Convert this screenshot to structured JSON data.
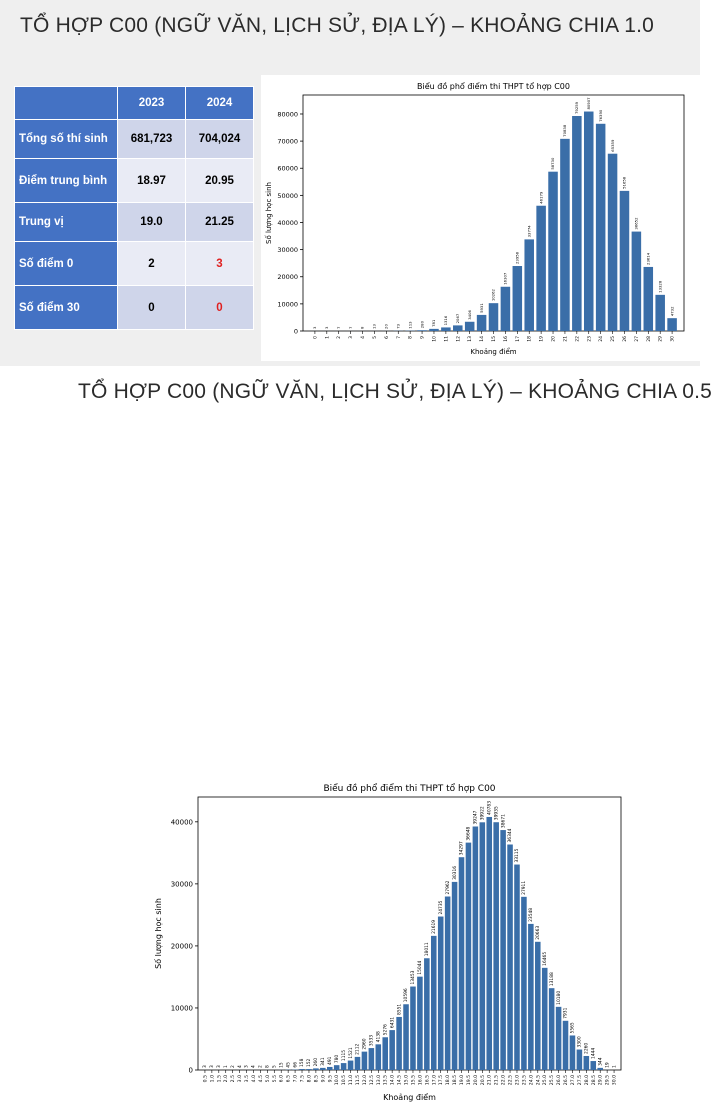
{
  "slide1": {
    "title": "TỔ HỢP C00 (NGỮ VĂN, LỊCH SỬ, ĐỊA LÝ) – KHOẢNG CHIA 1.0"
  },
  "slide2": {
    "title": "TỔ HỢP C00 (NGỮ VĂN, LỊCH SỬ, ĐỊA LÝ) – KHOẢNG CHIA 0.5"
  },
  "stats_table": {
    "headers": [
      "",
      "2023",
      "2024"
    ],
    "rows": [
      {
        "label": "Tổng số thí sinh",
        "v2023": "681,723",
        "v2024": "704,024"
      },
      {
        "label": "Điểm trung bình",
        "v2023": "18.97",
        "v2024": "20.95"
      },
      {
        "label": "Trung vị",
        "v2023": "19.0",
        "v2024": "21.25"
      },
      {
        "label": "Số điểm 0",
        "v2023": "2",
        "v2024": "3"
      },
      {
        "label": "Số điểm 30",
        "v2023": "0",
        "v2024": "0"
      }
    ],
    "highlight_color": "#e02020"
  },
  "chart_data": [
    {
      "type": "bar",
      "title": "Biểu đồ phổ điểm thi THPT tổ hợp C00",
      "xlabel": "Khoảng điểm",
      "ylabel": "Số lượng học sinh",
      "color": "#3a6ea8",
      "ylim": [
        0,
        87000
      ],
      "yticks": [
        0,
        10000,
        20000,
        30000,
        40000,
        50000,
        60000,
        70000,
        80000
      ],
      "categories": [
        "0",
        "1",
        "2",
        "3",
        "4",
        "5",
        "6",
        "7",
        "8",
        "9",
        "10",
        "11",
        "12",
        "13",
        "14",
        "15",
        "16",
        "17",
        "18",
        "19",
        "20",
        "21",
        "22",
        "23",
        "24",
        "25",
        "26",
        "27",
        "28",
        "29",
        "30"
      ],
      "values": [
        3,
        3,
        7,
        7,
        8,
        13,
        20,
        73,
        113,
        280,
        781,
        1316,
        2067,
        3406,
        5931,
        10262,
        16307,
        23958,
        33774,
        46179,
        58730,
        70838,
        79259,
        80907,
        76390,
        65359,
        51658,
        36652,
        23614,
        13328,
        4732
      ],
      "value_labels": [
        "3",
        "3",
        "7",
        "7",
        "8",
        "13",
        "20",
        "73",
        "113",
        "280",
        "781",
        "1316",
        "2067",
        "3406",
        "5931",
        "10262",
        "16307",
        "23958",
        "33774",
        "46179",
        "58730",
        "70838",
        "79259",
        "80907",
        "76390",
        "65359",
        "51658",
        "36652",
        "23614",
        "13328",
        "4732"
      ]
    },
    {
      "type": "bar",
      "title": "Biểu đồ phổ điểm thi THPT tổ hợp C00",
      "xlabel": "Khoảng điểm",
      "ylabel": "Số lượng học sinh",
      "color": "#3a6ea8",
      "ylim": [
        0,
        44000
      ],
      "yticks": [
        0,
        10000,
        20000,
        30000,
        40000
      ],
      "categories": [
        "0.5",
        "1.0",
        "1.5",
        "2.0",
        "2.5",
        "3.0",
        "3.5",
        "4.0",
        "4.5",
        "5.0",
        "5.5",
        "6.0",
        "6.5",
        "7.0",
        "7.5",
        "8.0",
        "8.5",
        "9.0",
        "9.5",
        "10.0",
        "10.5",
        "11.0",
        "11.5",
        "12.0",
        "12.5",
        "13.0",
        "13.5",
        "14.0",
        "14.5",
        "15.0",
        "15.5",
        "16.0",
        "16.5",
        "17.0",
        "17.5",
        "18.0",
        "18.5",
        "19.0",
        "19.5",
        "20.0",
        "20.5",
        "21.0",
        "21.5",
        "22.0",
        "22.5",
        "23.0",
        "23.5",
        "24.0",
        "24.5",
        "25.0",
        "25.5",
        "26.0",
        "26.5",
        "27.0",
        "27.5",
        "28.0",
        "28.5",
        "29.0",
        "29.5",
        "30.0"
      ],
      "values": [
        3,
        3,
        3,
        1,
        2,
        4,
        3,
        4,
        2,
        8,
        5,
        15,
        45,
        66,
        158,
        152,
        260,
        341,
        491,
        780,
        1115,
        1521,
        2112,
        2960,
        3533,
        4138,
        5276,
        6431,
        8551,
        10596,
        13453,
        15044,
        18011,
        21619,
        24735,
        27962,
        30316,
        34297,
        36648,
        39247,
        39922,
        40783,
        39935,
        38671,
        36344,
        33115,
        27911,
        23548,
        20663,
        16465,
        13188,
        10180,
        7931,
        5565,
        3300,
        2260,
        1444,
        344,
        19,
        1
      ],
      "value_labels": [
        "3",
        "3",
        "3",
        "1",
        "2",
        "4",
        "3",
        "4",
        "2",
        "8",
        "5",
        "15",
        "45",
        "66",
        "158",
        "152",
        "260",
        "341",
        "491",
        "780",
        "1115",
        "1521",
        "2112",
        "2960",
        "3533",
        "4138",
        "5276",
        "6431",
        "8551",
        "10596",
        "13453",
        "15044",
        "18011",
        "21619",
        "24735",
        "27962",
        "30316",
        "34297",
        "36648",
        "39247",
        "39922",
        "40783",
        "39935",
        "38671",
        "36344",
        "33115",
        "27911",
        "23548",
        "20663",
        "16465",
        "13188",
        "10180",
        "7931",
        "5565",
        "3300",
        "2260",
        "1444",
        "344",
        "19",
        "1"
      ]
    }
  ]
}
